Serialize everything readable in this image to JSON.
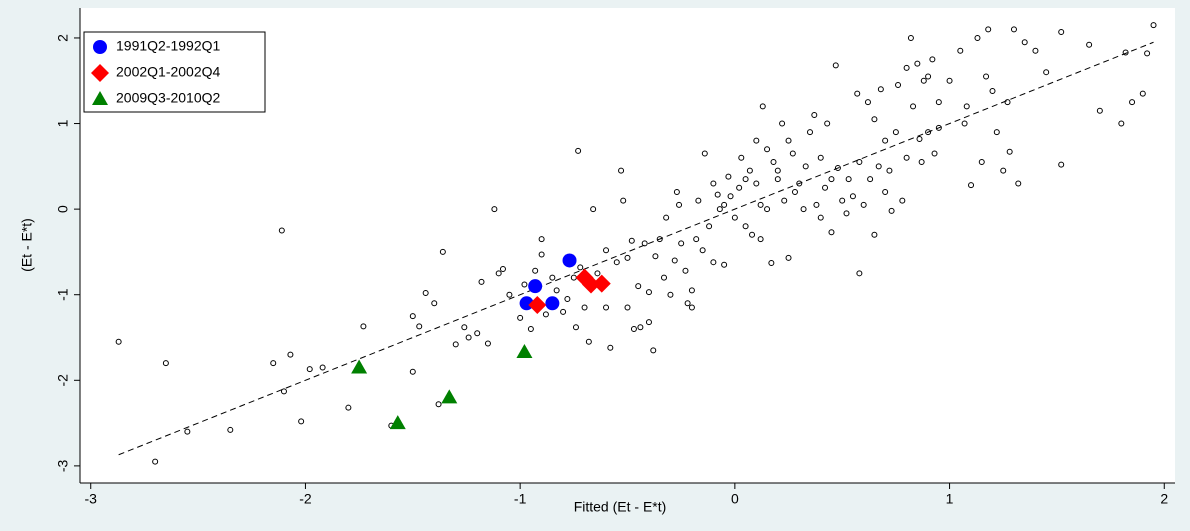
{
  "chart_data": {
    "type": "scatter",
    "x_label": "Fitted (Et - E*t)",
    "y_label": "(Et - E*t)",
    "xlim": [
      -3.05,
      2.05
    ],
    "ylim": [
      -3.2,
      2.35
    ],
    "xticks": [
      -3,
      -2,
      -1,
      0,
      1,
      2
    ],
    "yticks": [
      -3,
      -2,
      -1,
      0,
      1,
      2
    ],
    "legend": "top-left",
    "fit_line": {
      "color": "#000000",
      "x": [
        -2.87,
        1.95
      ],
      "y": [
        -2.87,
        1.95
      ]
    },
    "series": [
      {
        "color": "#000000",
        "marker": "hollow-circle",
        "x": [
          -2.87,
          -2.7,
          -2.65,
          -2.55,
          -2.35,
          -2.15,
          -2.1,
          -2.11,
          -2.07,
          -2.02,
          -1.98,
          -1.92,
          -1.8,
          -1.73,
          -1.6,
          -1.5,
          -1.5,
          -1.47,
          -1.44,
          -1.4,
          -1.38,
          -1.36,
          -1.3,
          -1.26,
          -1.24,
          -1.2,
          -1.18,
          -1.15,
          -1.12,
          -1.1,
          -1.08,
          -1.05,
          -1.0,
          -0.98,
          -0.95,
          -0.93,
          -0.9,
          -0.9,
          -0.88,
          -0.85,
          -0.83,
          -0.8,
          -0.78,
          -0.75,
          -0.74,
          -0.73,
          -0.72,
          -0.7,
          -0.68,
          -0.66,
          -0.64,
          -0.6,
          -0.6,
          -0.58,
          -0.55,
          -0.53,
          -0.52,
          -0.5,
          -0.5,
          -0.48,
          -0.47,
          -0.45,
          -0.44,
          -0.42,
          -0.4,
          -0.4,
          -0.38,
          -0.37,
          -0.35,
          -0.33,
          -0.32,
          -0.3,
          -0.28,
          -0.27,
          -0.26,
          -0.25,
          -0.23,
          -0.22,
          -0.2,
          -0.2,
          -0.18,
          -0.17,
          -0.15,
          -0.14,
          -0.12,
          -0.1,
          -0.1,
          -0.08,
          -0.07,
          -0.05,
          -0.05,
          -0.03,
          -0.02,
          0.0,
          0.02,
          0.03,
          0.05,
          0.05,
          0.07,
          0.08,
          0.1,
          0.1,
          0.12,
          0.12,
          0.13,
          0.15,
          0.15,
          0.17,
          0.18,
          0.2,
          0.2,
          0.22,
          0.23,
          0.25,
          0.25,
          0.27,
          0.28,
          0.3,
          0.32,
          0.33,
          0.35,
          0.37,
          0.38,
          0.4,
          0.4,
          0.42,
          0.43,
          0.45,
          0.45,
          0.47,
          0.48,
          0.5,
          0.52,
          0.53,
          0.55,
          0.57,
          0.58,
          0.58,
          0.6,
          0.62,
          0.63,
          0.65,
          0.65,
          0.67,
          0.68,
          0.7,
          0.7,
          0.72,
          0.73,
          0.75,
          0.76,
          0.78,
          0.8,
          0.8,
          0.82,
          0.83,
          0.85,
          0.86,
          0.87,
          0.88,
          0.9,
          0.9,
          0.92,
          0.93,
          0.95,
          0.95,
          1.0,
          1.05,
          1.07,
          1.08,
          1.1,
          1.13,
          1.15,
          1.17,
          1.18,
          1.2,
          1.22,
          1.25,
          1.27,
          1.28,
          1.3,
          1.32,
          1.35,
          1.4,
          1.45,
          1.52,
          1.52,
          1.65,
          1.7,
          1.8,
          1.82,
          1.85,
          1.9,
          1.92,
          1.95
        ],
        "values": [
          -1.55,
          -2.95,
          -1.8,
          -2.6,
          -2.58,
          -1.8,
          -2.13,
          -0.25,
          -1.7,
          -2.48,
          -1.87,
          -1.85,
          -2.32,
          -1.37,
          -2.53,
          -1.9,
          -1.25,
          -1.37,
          -0.98,
          -1.1,
          -2.28,
          -0.5,
          -1.58,
          -1.38,
          -1.5,
          -1.45,
          -0.85,
          -1.57,
          0.0,
          -0.75,
          -0.7,
          -1.0,
          -1.27,
          -0.88,
          -1.4,
          -0.72,
          -0.53,
          -0.35,
          -1.23,
          -0.8,
          -0.95,
          -1.2,
          -1.05,
          -0.8,
          -1.38,
          0.68,
          -0.68,
          -1.15,
          -1.55,
          0.0,
          -0.75,
          -1.15,
          -0.48,
          -1.62,
          -0.62,
          0.45,
          0.1,
          -0.57,
          -1.15,
          -0.37,
          -1.4,
          -0.9,
          -1.38,
          -0.4,
          -1.32,
          -0.97,
          -1.65,
          -0.55,
          -0.35,
          -0.8,
          -0.1,
          -1.0,
          -0.6,
          0.2,
          0.05,
          -0.4,
          -0.72,
          -1.1,
          -0.95,
          -1.15,
          -0.35,
          0.1,
          -0.48,
          0.65,
          -0.2,
          0.3,
          -0.62,
          0.17,
          0.0,
          0.05,
          -0.65,
          0.38,
          0.15,
          -0.1,
          0.25,
          0.6,
          0.35,
          -0.2,
          0.45,
          -0.3,
          0.8,
          0.3,
          0.05,
          -0.35,
          1.2,
          0.7,
          0.0,
          -0.63,
          0.55,
          0.45,
          0.35,
          1.0,
          0.1,
          -0.57,
          0.8,
          0.65,
          0.2,
          0.3,
          0.0,
          0.5,
          0.9,
          1.1,
          0.05,
          0.6,
          -0.1,
          0.25,
          1.0,
          -0.27,
          0.35,
          1.68,
          0.48,
          0.1,
          -0.05,
          0.35,
          0.15,
          1.35,
          0.55,
          -0.75,
          0.05,
          1.25,
          0.35,
          1.05,
          -0.3,
          0.5,
          1.4,
          0.8,
          0.2,
          0.45,
          -0.02,
          0.9,
          1.45,
          0.1,
          1.65,
          0.6,
          2.0,
          1.2,
          1.7,
          0.82,
          0.55,
          1.5,
          1.55,
          0.9,
          1.75,
          0.65,
          1.25,
          0.95,
          1.5,
          1.85,
          1.0,
          1.2,
          0.28,
          2.0,
          0.55,
          1.55,
          2.1,
          1.38,
          0.9,
          0.45,
          1.25,
          0.67,
          2.1,
          0.3,
          1.95,
          1.85,
          1.6,
          2.07,
          0.52,
          1.92,
          1.15,
          1.0,
          1.83,
          1.25,
          1.35,
          1.82,
          2.15
        ]
      },
      {
        "name": "1991Q2-1992Q1",
        "color": "#0000ff",
        "marker": "circle",
        "x": [
          -0.97,
          -0.93,
          -0.77,
          -0.85
        ],
        "values": [
          -1.1,
          -0.9,
          -0.6,
          -1.1
        ]
      },
      {
        "name": "2002Q1-2002Q4",
        "color": "#ff0000",
        "marker": "diamond",
        "x": [
          -0.92,
          -0.7,
          -0.67,
          -0.62
        ],
        "values": [
          -1.12,
          -0.8,
          -0.88,
          -0.87
        ]
      },
      {
        "name": "2009Q3-2010Q2",
        "color": "#008000",
        "marker": "triangle",
        "x": [
          -1.75,
          -1.57,
          -1.33,
          -0.98
        ],
        "values": [
          -1.85,
          -2.5,
          -2.2,
          -1.67
        ]
      }
    ]
  }
}
